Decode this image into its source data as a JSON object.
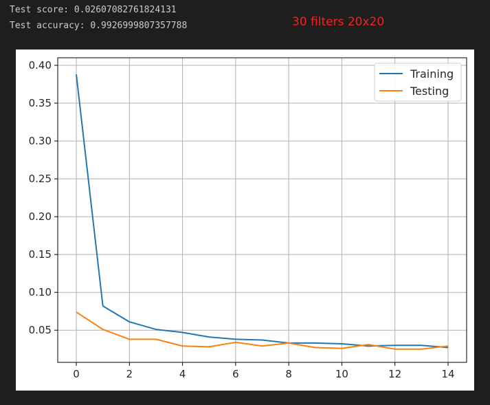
{
  "output": {
    "score_line": "Test score: 0.02607082761824131",
    "accuracy_line": "Test accuracy: 0.9926999807357788"
  },
  "annotation": {
    "text": "30 filters 20x20",
    "color": "#ff1e1e"
  },
  "chart_data": {
    "type": "line",
    "x": [
      0,
      1,
      2,
      3,
      4,
      5,
      6,
      7,
      8,
      9,
      10,
      11,
      12,
      13,
      14
    ],
    "xlim": [
      -0.7,
      14.7
    ],
    "ylim": [
      0.0075,
      0.41
    ],
    "xticks": [
      0,
      2,
      4,
      6,
      8,
      10,
      12,
      14
    ],
    "yticks": [
      0.05,
      0.1,
      0.15,
      0.2,
      0.25,
      0.3,
      0.35,
      0.4
    ],
    "ytick_labels": [
      "0.05",
      "0.10",
      "0.15",
      "0.20",
      "0.25",
      "0.30",
      "0.35",
      "0.40"
    ],
    "grid": true,
    "legend_position": "top-right",
    "series": [
      {
        "name": "Training",
        "color": "#1f77b4",
        "values": [
          0.388,
          0.082,
          0.061,
          0.051,
          0.047,
          0.041,
          0.038,
          0.037,
          0.033,
          0.033,
          0.032,
          0.029,
          0.03,
          0.03,
          0.027
        ]
      },
      {
        "name": "Testing",
        "color": "#ff7f0e",
        "values": [
          0.074,
          0.051,
          0.038,
          0.038,
          0.029,
          0.028,
          0.034,
          0.029,
          0.033,
          0.027,
          0.026,
          0.031,
          0.025,
          0.025,
          0.029
        ]
      }
    ]
  }
}
